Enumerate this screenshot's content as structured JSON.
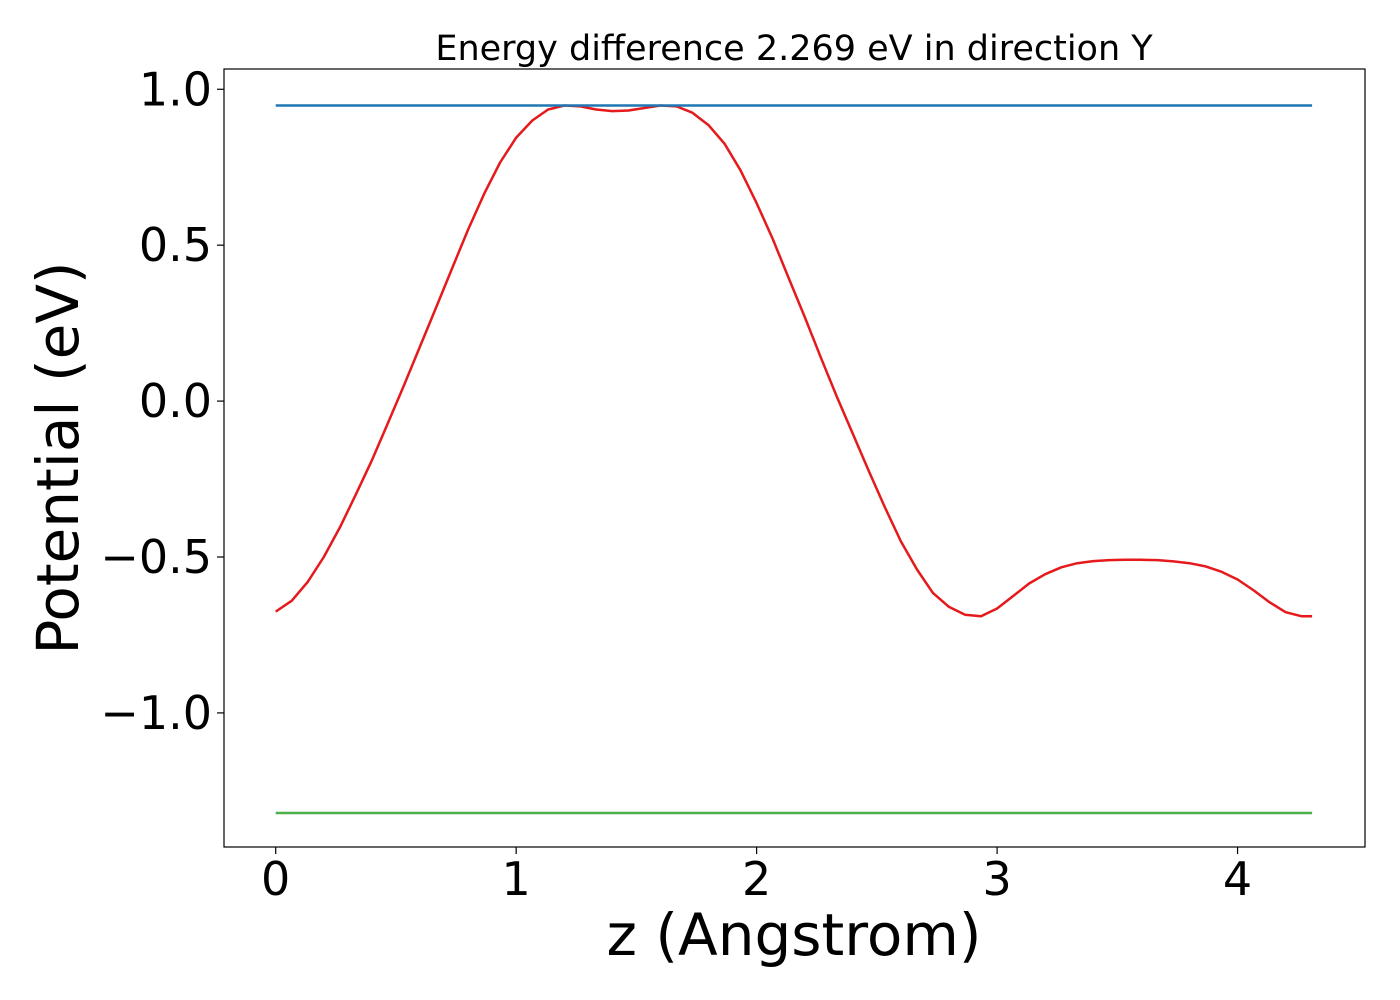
{
  "chart_data": {
    "type": "line",
    "title": "Energy difference 2.269 eV in direction Y",
    "xlabel": "z (Angstrom)",
    "ylabel": "Potential (eV)",
    "xlim": [
      -0.215,
      4.53
    ],
    "ylim": [
      -1.43,
      1.065
    ],
    "xticks": [
      0,
      1,
      2,
      3,
      4
    ],
    "xtick_labels": [
      "0",
      "1",
      "2",
      "3",
      "4"
    ],
    "yticks": [
      -1.0,
      -0.5,
      0.0,
      0.5,
      1.0
    ],
    "ytick_labels": [
      "−1.0",
      "−0.5",
      "0.0",
      "0.5",
      "1.0"
    ],
    "grid": false,
    "legend": "none",
    "series": [
      {
        "color": "#e41a1c",
        "x": [
          0,
          0.067,
          0.133,
          0.2,
          0.267,
          0.333,
          0.4,
          0.467,
          0.533,
          0.6,
          0.667,
          0.733,
          0.8,
          0.867,
          0.933,
          1.0,
          1.067,
          1.133,
          1.2,
          1.267,
          1.333,
          1.4,
          1.467,
          1.533,
          1.6,
          1.667,
          1.733,
          1.8,
          1.867,
          1.933,
          2.0,
          2.067,
          2.133,
          2.2,
          2.267,
          2.333,
          2.4,
          2.467,
          2.533,
          2.6,
          2.667,
          2.733,
          2.8,
          2.867,
          2.933,
          3.0,
          3.067,
          3.133,
          3.2,
          3.267,
          3.333,
          3.4,
          3.467,
          3.533,
          3.6,
          3.667,
          3.733,
          3.8,
          3.867,
          3.933,
          4.0,
          4.067,
          4.133,
          4.2,
          4.267,
          4.31
        ],
        "y": [
          -0.675,
          -0.64,
          -0.58,
          -0.5,
          -0.405,
          -0.3,
          -0.19,
          -0.07,
          0.05,
          0.175,
          0.3,
          0.425,
          0.55,
          0.665,
          0.765,
          0.845,
          0.9,
          0.935,
          0.948,
          0.945,
          0.935,
          0.93,
          0.932,
          0.94,
          0.948,
          0.945,
          0.925,
          0.885,
          0.825,
          0.74,
          0.635,
          0.52,
          0.395,
          0.27,
          0.14,
          0.015,
          -0.105,
          -0.225,
          -0.34,
          -0.45,
          -0.54,
          -0.615,
          -0.66,
          -0.685,
          -0.69,
          -0.665,
          -0.625,
          -0.585,
          -0.555,
          -0.533,
          -0.52,
          -0.513,
          -0.51,
          -0.509,
          -0.509,
          -0.51,
          -0.514,
          -0.52,
          -0.53,
          -0.547,
          -0.572,
          -0.607,
          -0.645,
          -0.677,
          -0.69,
          -0.69
        ]
      },
      {
        "color": "#1f77b4",
        "x": [
          0,
          4.31
        ],
        "y": [
          0.948,
          0.948
        ]
      },
      {
        "color": "#4daf4a",
        "x": [
          0,
          4.31
        ],
        "y": [
          -1.321,
          -1.321
        ]
      }
    ]
  }
}
